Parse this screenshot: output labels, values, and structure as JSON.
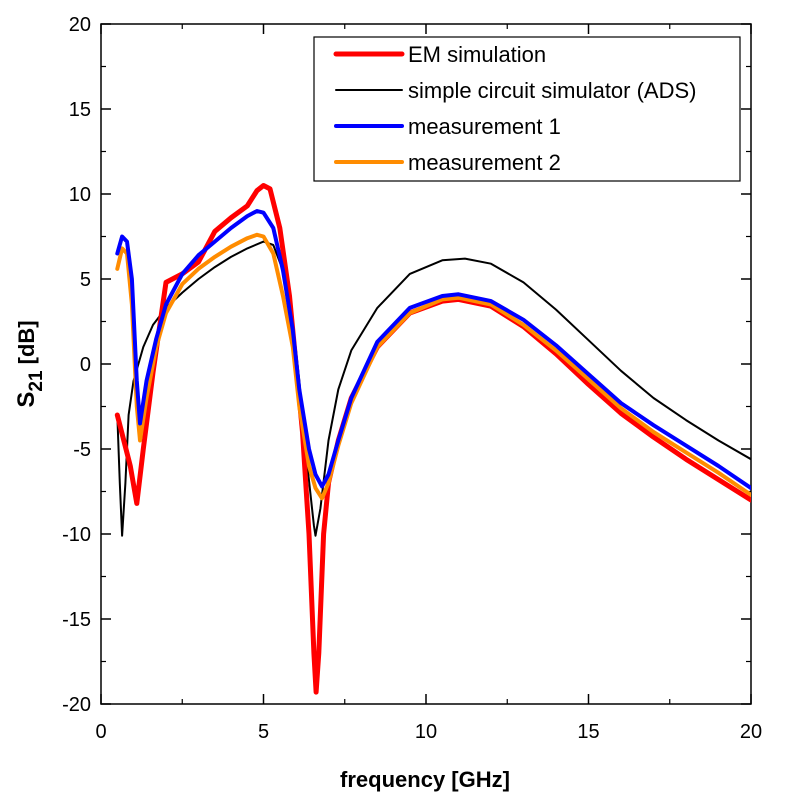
{
  "chart_data": {
    "type": "line",
    "xlabel": "frequency [GHz]",
    "ylabel_main": "S",
    "ylabel_sub": "21",
    "ylabel_suffix": " [dB]",
    "xlim": [
      0,
      20
    ],
    "ylim": [
      -20,
      20
    ],
    "x_ticks": [
      0,
      5,
      10,
      15,
      20
    ],
    "x_tick_labels": [
      "0",
      "5",
      "10",
      "15",
      "20"
    ],
    "y_ticks": [
      -20,
      -15,
      -10,
      -5,
      0,
      5,
      10,
      15,
      20
    ],
    "y_tick_labels": [
      "-20",
      "-15",
      "-10",
      "-5",
      "0",
      "5",
      "10",
      "15",
      "20"
    ],
    "grid": false,
    "legend_position": "top-right",
    "series": [
      {
        "name": "EM simulation",
        "color": "#ff0000",
        "points": [
          [
            0.5,
            -3.0
          ],
          [
            0.7,
            -4.5
          ],
          [
            0.9,
            -6.0
          ],
          [
            1.1,
            -8.2
          ],
          [
            1.3,
            -5.0
          ],
          [
            1.6,
            -0.5
          ],
          [
            2.0,
            4.8
          ],
          [
            2.5,
            5.3
          ],
          [
            3.0,
            6.0
          ],
          [
            3.5,
            7.8
          ],
          [
            4.0,
            8.6
          ],
          [
            4.5,
            9.3
          ],
          [
            4.8,
            10.2
          ],
          [
            5.0,
            10.5
          ],
          [
            5.2,
            10.3
          ],
          [
            5.5,
            8.0
          ],
          [
            5.8,
            4.0
          ],
          [
            6.0,
            0.0
          ],
          [
            6.2,
            -4.0
          ],
          [
            6.4,
            -10.0
          ],
          [
            6.55,
            -17.0
          ],
          [
            6.62,
            -19.3
          ],
          [
            6.7,
            -17.0
          ],
          [
            6.85,
            -10.0
          ],
          [
            7.0,
            -7.0
          ],
          [
            7.3,
            -4.5
          ],
          [
            7.7,
            -2.0
          ],
          [
            8.5,
            1.0
          ],
          [
            9.5,
            3.0
          ],
          [
            10.5,
            3.7
          ],
          [
            11.0,
            3.8
          ],
          [
            12.0,
            3.4
          ],
          [
            13.0,
            2.2
          ],
          [
            14.0,
            0.6
          ],
          [
            15.0,
            -1.2
          ],
          [
            16.0,
            -2.9
          ],
          [
            17.0,
            -4.3
          ],
          [
            18.0,
            -5.6
          ],
          [
            19.0,
            -6.8
          ],
          [
            20.0,
            -8.0
          ]
        ]
      },
      {
        "name": "simple circuit simulator (ADS)",
        "color": "#000000",
        "points": [
          [
            0.5,
            -3.0
          ],
          [
            0.58,
            -7.0
          ],
          [
            0.65,
            -10.1
          ],
          [
            0.75,
            -7.0
          ],
          [
            0.85,
            -3.0
          ],
          [
            1.0,
            -1.0
          ],
          [
            1.3,
            1.0
          ],
          [
            1.6,
            2.3
          ],
          [
            2.0,
            3.3
          ],
          [
            2.5,
            4.2
          ],
          [
            3.0,
            5.0
          ],
          [
            3.5,
            5.7
          ],
          [
            4.0,
            6.3
          ],
          [
            4.5,
            6.8
          ],
          [
            5.0,
            7.2
          ],
          [
            5.3,
            7.0
          ],
          [
            5.6,
            5.5
          ],
          [
            5.9,
            2.5
          ],
          [
            6.1,
            -1.0
          ],
          [
            6.35,
            -6.0
          ],
          [
            6.55,
            -9.5
          ],
          [
            6.6,
            -10.1
          ],
          [
            6.75,
            -8.5
          ],
          [
            7.0,
            -4.5
          ],
          [
            7.3,
            -1.5
          ],
          [
            7.7,
            0.8
          ],
          [
            8.5,
            3.3
          ],
          [
            9.5,
            5.3
          ],
          [
            10.5,
            6.1
          ],
          [
            11.2,
            6.2
          ],
          [
            12.0,
            5.9
          ],
          [
            13.0,
            4.8
          ],
          [
            14.0,
            3.2
          ],
          [
            15.0,
            1.4
          ],
          [
            16.0,
            -0.4
          ],
          [
            17.0,
            -2.0
          ],
          [
            18.0,
            -3.3
          ],
          [
            19.0,
            -4.5
          ],
          [
            20.0,
            -5.6
          ]
        ]
      },
      {
        "name": "measurement 1",
        "color": "#0000ff",
        "points": [
          [
            0.5,
            6.5
          ],
          [
            0.65,
            7.5
          ],
          [
            0.8,
            7.2
          ],
          [
            0.95,
            5.0
          ],
          [
            1.1,
            -1.0
          ],
          [
            1.2,
            -3.5
          ],
          [
            1.4,
            -1.0
          ],
          [
            1.7,
            1.5
          ],
          [
            2.0,
            3.5
          ],
          [
            2.5,
            5.3
          ],
          [
            3.0,
            6.4
          ],
          [
            3.5,
            7.2
          ],
          [
            4.0,
            8.0
          ],
          [
            4.5,
            8.7
          ],
          [
            4.8,
            9.0
          ],
          [
            5.0,
            8.9
          ],
          [
            5.3,
            8.0
          ],
          [
            5.6,
            5.5
          ],
          [
            5.9,
            2.0
          ],
          [
            6.1,
            -1.5
          ],
          [
            6.4,
            -5.0
          ],
          [
            6.6,
            -6.5
          ],
          [
            6.8,
            -7.2
          ],
          [
            7.0,
            -6.5
          ],
          [
            7.3,
            -4.5
          ],
          [
            7.7,
            -2.0
          ],
          [
            8.5,
            1.3
          ],
          [
            9.5,
            3.3
          ],
          [
            10.5,
            4.0
          ],
          [
            11.0,
            4.1
          ],
          [
            12.0,
            3.7
          ],
          [
            13.0,
            2.6
          ],
          [
            14.0,
            1.1
          ],
          [
            15.0,
            -0.6
          ],
          [
            16.0,
            -2.3
          ],
          [
            17.0,
            -3.6
          ],
          [
            18.0,
            -4.8
          ],
          [
            19.0,
            -6.0
          ],
          [
            20.0,
            -7.3
          ]
        ]
      },
      {
        "name": "measurement 2",
        "color": "#ff8c00",
        "points": [
          [
            0.5,
            5.6
          ],
          [
            0.65,
            6.8
          ],
          [
            0.8,
            6.5
          ],
          [
            0.95,
            3.5
          ],
          [
            1.1,
            -2.5
          ],
          [
            1.2,
            -4.5
          ],
          [
            1.4,
            -2.0
          ],
          [
            1.7,
            1.0
          ],
          [
            2.0,
            3.0
          ],
          [
            2.5,
            4.7
          ],
          [
            3.0,
            5.6
          ],
          [
            3.5,
            6.3
          ],
          [
            4.0,
            6.9
          ],
          [
            4.5,
            7.4
          ],
          [
            4.8,
            7.6
          ],
          [
            5.0,
            7.5
          ],
          [
            5.3,
            6.5
          ],
          [
            5.6,
            4.0
          ],
          [
            5.9,
            1.0
          ],
          [
            6.1,
            -2.5
          ],
          [
            6.4,
            -6.0
          ],
          [
            6.6,
            -7.3
          ],
          [
            6.8,
            -7.9
          ],
          [
            7.0,
            -7.0
          ],
          [
            7.3,
            -4.8
          ],
          [
            7.7,
            -2.3
          ],
          [
            8.5,
            1.0
          ],
          [
            9.5,
            3.0
          ],
          [
            10.5,
            3.8
          ],
          [
            11.0,
            3.9
          ],
          [
            12.0,
            3.5
          ],
          [
            13.0,
            2.3
          ],
          [
            14.0,
            0.8
          ],
          [
            15.0,
            -0.9
          ],
          [
            16.0,
            -2.6
          ],
          [
            17.0,
            -4.0
          ],
          [
            18.0,
            -5.2
          ],
          [
            19.0,
            -6.4
          ],
          [
            20.0,
            -7.7
          ]
        ]
      }
    ]
  }
}
